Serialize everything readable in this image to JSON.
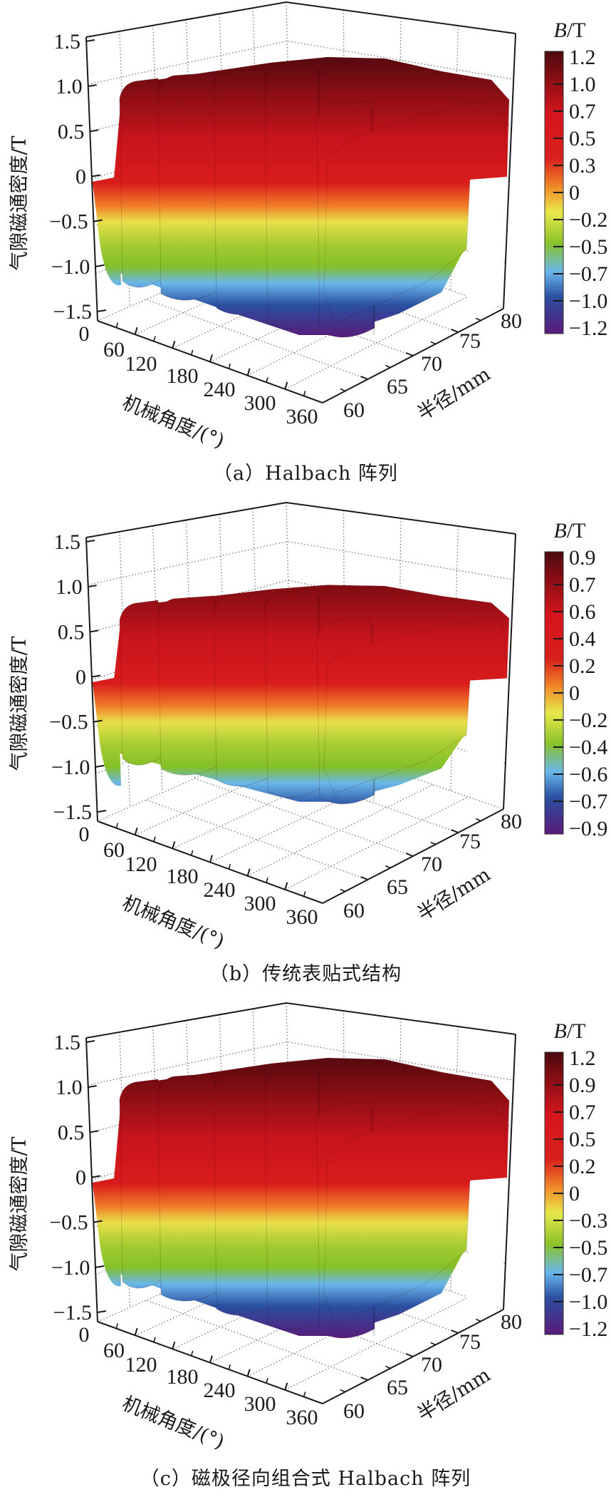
{
  "figure": {
    "panels": [
      {
        "id": "a",
        "caption": "（a）Halbach 阵列",
        "zlabel": "气隙磁通密度/T",
        "xlabel": "机械角度/(°)",
        "ylabel": "半径/mm",
        "colorbar_title_italic": "B",
        "colorbar_title_rest": "/T",
        "z_ticks": [
          "1.5",
          "1.0",
          "0.5",
          "0",
          "−0.5",
          "−1.0",
          "−1.5"
        ],
        "x_ticks": [
          "0",
          "60",
          "120",
          "180",
          "240",
          "300",
          "360"
        ],
        "y_ticks": [
          "60",
          "65",
          "70",
          "75",
          "80"
        ],
        "colorbar_ticks": [
          "1.2",
          "1.0",
          "0.7",
          "0.5",
          "0.3",
          "0",
          "−0.2",
          "−0.5",
          "−0.7",
          "−1.0",
          "−1.2"
        ]
      },
      {
        "id": "b",
        "caption": "（b）传统表贴式结构",
        "zlabel": "气隙磁通密度/T",
        "xlabel": "机械角度/(°)",
        "ylabel": "半径/mm",
        "colorbar_title_italic": "B",
        "colorbar_title_rest": "/T",
        "z_ticks": [
          "1.5",
          "1.0",
          "0.5",
          "0",
          "−0.5",
          "−1.0",
          "−1.5"
        ],
        "x_ticks": [
          "0",
          "60",
          "120",
          "180",
          "240",
          "300",
          "360"
        ],
        "y_ticks": [
          "60",
          "65",
          "70",
          "75",
          "80"
        ],
        "colorbar_ticks": [
          "0.9",
          "0.7",
          "0.6",
          "0.4",
          "0.2",
          "0",
          "−0.2",
          "−0.4",
          "−0.6",
          "−0.7",
          "−0.9"
        ]
      },
      {
        "id": "c",
        "caption": "（c）磁极径向组合式 Halbach 阵列",
        "zlabel": "气隙磁通密度/T",
        "xlabel": "机械角度/(°)",
        "ylabel": "半径/mm",
        "colorbar_title_italic": "B",
        "colorbar_title_rest": "/T",
        "z_ticks": [
          "1.5",
          "1.0",
          "0.5",
          "0",
          "−0.5",
          "−1.0",
          "−1.5"
        ],
        "x_ticks": [
          "0",
          "60",
          "120",
          "180",
          "240",
          "300",
          "360"
        ],
        "y_ticks": [
          "60",
          "65",
          "70",
          "75",
          "80"
        ],
        "colorbar_ticks": [
          "1.2",
          "0.9",
          "0.7",
          "0.5",
          "0.2",
          "0",
          "−0.3",
          "−0.5",
          "−0.7",
          "−1.0",
          "−1.2"
        ]
      }
    ]
  },
  "chart_data": [
    {
      "type": "surface3d",
      "title": "（a）Halbach 阵列",
      "xlabel": "机械角度/(°)",
      "ylabel": "半径/mm",
      "zlabel": "气隙磁通密度/T",
      "xlim": [
        0,
        360
      ],
      "ylim": [
        60,
        80
      ],
      "zlim": [
        -1.5,
        1.5
      ],
      "x_ticks": [
        0,
        60,
        120,
        180,
        240,
        300,
        360
      ],
      "y_ticks": [
        60,
        65,
        70,
        75,
        80
      ],
      "z_ticks": [
        1.5,
        1.0,
        0.5,
        0,
        -0.5,
        -1.0,
        -1.5
      ],
      "grid": true,
      "colormap": "jet-like (purple-blue-cyan-green-yellow-orange-red-maroon)",
      "colorbar": {
        "title": "B/T",
        "position": "right",
        "ticks": [
          1.2,
          1.0,
          0.7,
          0.5,
          0.3,
          0,
          -0.2,
          -0.5,
          -0.7,
          -1.0,
          -1.2
        ],
        "range": [
          -1.2,
          1.2
        ]
      },
      "surface_description": "Alternating pole ridges along mechanical angle (~5 positive lobes), peak ≈ +1.2 T, trough ≈ -1.2 T, nearly uniform along radius 60–80 mm",
      "approx_peak_B": 1.2,
      "approx_min_B": -1.2
    },
    {
      "type": "surface3d",
      "title": "（b）传统表贴式结构",
      "xlabel": "机械角度/(°)",
      "ylabel": "半径/mm",
      "zlabel": "气隙磁通密度/T",
      "xlim": [
        0,
        360
      ],
      "ylim": [
        60,
        80
      ],
      "zlim": [
        -1.5,
        1.5
      ],
      "x_ticks": [
        0,
        60,
        120,
        180,
        240,
        300,
        360
      ],
      "y_ticks": [
        60,
        65,
        70,
        75,
        80
      ],
      "z_ticks": [
        1.5,
        1.0,
        0.5,
        0,
        -0.5,
        -1.0,
        -1.5
      ],
      "grid": true,
      "colormap": "jet-like",
      "colorbar": {
        "title": "B/T",
        "position": "right",
        "ticks": [
          0.9,
          0.7,
          0.6,
          0.4,
          0.2,
          0,
          -0.2,
          -0.4,
          -0.6,
          -0.7,
          -0.9
        ],
        "range": [
          -0.9,
          0.9
        ]
      },
      "surface_description": "Alternating pole ridges along mechanical angle, flatter plateaus, peak ≈ +0.9 T, trough ≈ -0.9 T",
      "approx_peak_B": 0.9,
      "approx_min_B": -0.9
    },
    {
      "type": "surface3d",
      "title": "（c）磁极径向组合式 Halbach 阵列",
      "xlabel": "机械角度/(°)",
      "ylabel": "半径/mm",
      "zlabel": "气隙磁通密度/T",
      "xlim": [
        0,
        360
      ],
      "ylim": [
        60,
        80
      ],
      "zlim": [
        -1.5,
        1.5
      ],
      "x_ticks": [
        0,
        60,
        120,
        180,
        240,
        300,
        360
      ],
      "y_ticks": [
        60,
        65,
        70,
        75,
        80
      ],
      "z_ticks": [
        1.5,
        1.0,
        0.5,
        0,
        -0.5,
        -1.0,
        -1.5
      ],
      "grid": true,
      "colormap": "jet-like",
      "colorbar": {
        "title": "B/T",
        "position": "right",
        "ticks": [
          1.2,
          0.9,
          0.7,
          0.5,
          0.2,
          0,
          -0.3,
          -0.5,
          -0.7,
          -1.0,
          -1.2
        ],
        "range": [
          -1.2,
          1.2
        ]
      },
      "surface_description": "Alternating pole ridges along mechanical angle, peak ≈ +1.2 T, trough ≈ -1.2 T",
      "approx_peak_B": 1.2,
      "approx_min_B": -1.2
    }
  ],
  "colors": {
    "cmap_stops": [
      "#4a0a10",
      "#8b0e14",
      "#d4151d",
      "#d8201c",
      "#f08a2a",
      "#e8e84a",
      "#8ac22a",
      "#6ab6ea",
      "#2a4fa0",
      "#5a1a78"
    ],
    "axis": "#1a1a1a",
    "grid": "#555555"
  }
}
